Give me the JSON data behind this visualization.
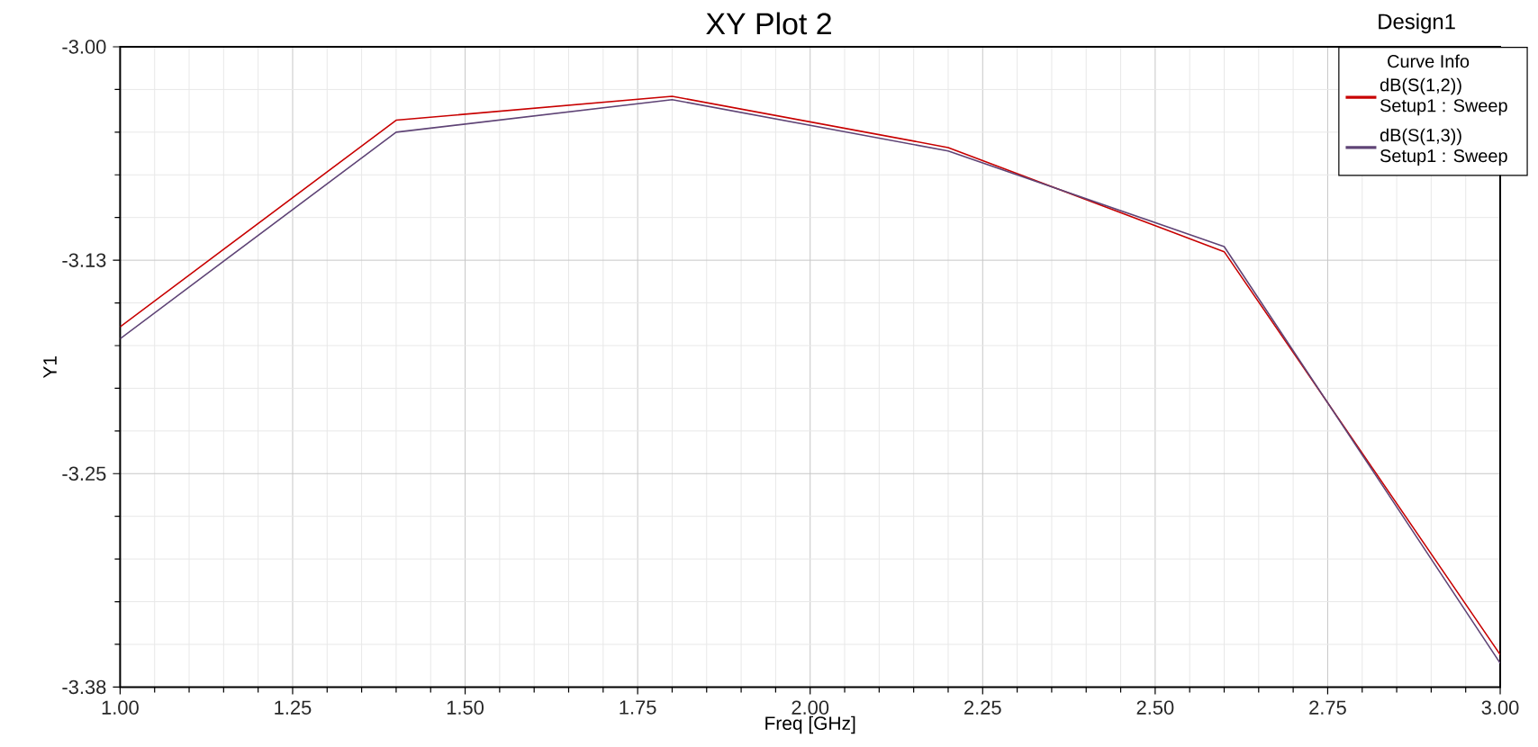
{
  "chart_data": {
    "type": "line",
    "title": "XY Plot 2",
    "xlabel": "Freq [GHz]",
    "ylabel": "Y1",
    "legend_title": "Curve Info",
    "annotations": [
      "Design1"
    ],
    "x": [
      1.0,
      1.4,
      1.8,
      2.2,
      2.6,
      3.0
    ],
    "series": [
      {
        "name": "dB(S(1,2)) Setup1 : Sweep",
        "color": "#c80000",
        "values": [
          -3.164,
          -3.043,
          -3.029,
          -3.059,
          -3.12,
          -3.356
        ]
      },
      {
        "name": "dB(S(1,3)) Setup1 : Sweep",
        "color": "#5f4476",
        "values": [
          -3.171,
          -3.05,
          -3.031,
          -3.061,
          -3.117,
          -3.361
        ]
      }
    ],
    "xlim": [
      1.0,
      3.0
    ],
    "ylim": [
      -3.375,
      -3.0
    ],
    "xticks": [
      {
        "value": 1.0,
        "label": "1.00"
      },
      1.25,
      {
        "value": 1.5,
        "label": "1.50"
      },
      1.75,
      {
        "value": 2.0,
        "label": "2.00"
      },
      2.25,
      {
        "value": 2.5,
        "label": "2.50"
      },
      2.75,
      {
        "value": 3.0,
        "label": "3.00"
      }
    ],
    "yticks": [
      {
        "value": -3.375,
        "label": "-3.38"
      },
      -3.25,
      {
        "value": -3.125,
        "label": "-3.13"
      },
      {
        "value": -3.0,
        "label": "-3.00"
      }
    ],
    "grid": true,
    "legend": "top right",
    "marker": "none",
    "line_style": "solid"
  }
}
